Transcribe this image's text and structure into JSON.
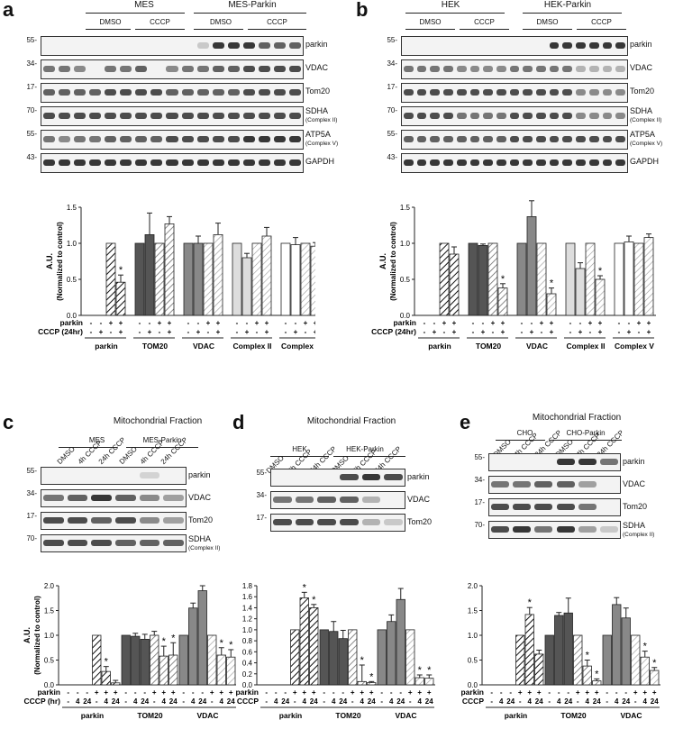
{
  "panels": {
    "a": {
      "label": "a",
      "groups": [
        "MES",
        "MES-Parkin"
      ],
      "treatments": [
        "DMSO",
        "CCCP",
        "DMSO",
        "CCCP"
      ],
      "rows": [
        {
          "mw": "55-",
          "label": "parkin",
          "sub": ""
        },
        {
          "mw": "34-",
          "label": "VDAC",
          "sub": ""
        },
        {
          "mw": "17-",
          "label": "Tom20",
          "sub": ""
        },
        {
          "mw": "70-",
          "label": "SDHA",
          "sub": "(Complex II)"
        },
        {
          "mw": "55-",
          "label": "ATP5A",
          "sub": "(Complex V)"
        },
        {
          "mw": "43-",
          "label": "GAPDH",
          "sub": ""
        }
      ]
    },
    "b": {
      "label": "b",
      "groups": [
        "HEK",
        "HEK-Parkin"
      ],
      "treatments": [
        "DMSO",
        "CCCP",
        "DMSO",
        "CCCP"
      ],
      "rows": [
        {
          "mw": "55-",
          "label": "parkin",
          "sub": ""
        },
        {
          "mw": "34-",
          "label": "VDAC",
          "sub": ""
        },
        {
          "mw": "17-",
          "label": "Tom20",
          "sub": ""
        },
        {
          "mw": "70-",
          "label": "SDHA",
          "sub": "(Complex II)"
        },
        {
          "mw": "55-",
          "label": "ATP5A",
          "sub": "(Complex V)"
        },
        {
          "mw": "43-",
          "label": "GAPDH",
          "sub": ""
        }
      ]
    },
    "c": {
      "label": "c",
      "title": "Mitochondrial Fraction",
      "groups": [
        "MES",
        "MES-Parkin"
      ],
      "lanes": [
        "DMSO",
        "4h CCCP",
        "24h CCCP",
        "DMSO",
        "4h CCCP",
        "24h CCCP"
      ],
      "rows": [
        {
          "mw": "55-",
          "label": "parkin",
          "sub": ""
        },
        {
          "mw": "34-",
          "label": "VDAC",
          "sub": ""
        },
        {
          "mw": "17-",
          "label": "Tom20",
          "sub": ""
        },
        {
          "mw": "70-",
          "label": "SDHA",
          "sub": "(Complex II)"
        }
      ]
    },
    "d": {
      "label": "d",
      "title": "Mitochondrial Fraction",
      "groups": [
        "HEK",
        "HEK-Parkin"
      ],
      "lanes": [
        "DMSO",
        "4h CCCP",
        "24h CCCP",
        "DMSO",
        "4h CCCP",
        "24h CCCP"
      ],
      "rows": [
        {
          "mw": "55-",
          "label": "parkin",
          "sub": ""
        },
        {
          "mw": "34-",
          "label": "VDAC",
          "sub": ""
        },
        {
          "mw": "17-",
          "label": "Tom20",
          "sub": ""
        }
      ]
    },
    "e": {
      "label": "e",
      "title": "Mitochondrial Fraction",
      "groups": [
        "CHO",
        "CHO-Parkin"
      ],
      "lanes": [
        "DMSO",
        "4h CCCP",
        "24h CCCP",
        "DMSO",
        "4h CCCP",
        "24h CCCP"
      ],
      "rows": [
        {
          "mw": "55-",
          "label": "parkin",
          "sub": ""
        },
        {
          "mw": "34-",
          "label": "VDAC",
          "sub": ""
        },
        {
          "mw": "17-",
          "label": "Tom20",
          "sub": ""
        },
        {
          "mw": "70-",
          "label": "SDHA",
          "sub": "(Complex II)"
        }
      ]
    }
  },
  "chart_data": [
    {
      "id": "a",
      "type": "bar",
      "ylabel": "A.U.\n(Normalized to control)",
      "ylim": [
        0,
        1.5
      ],
      "yticks": [
        "0.0",
        "0.5",
        "1.0",
        "1.5"
      ],
      "row_labels": [
        "parkin",
        "CCCP (24hr)"
      ],
      "row_values": [
        [
          "-",
          "-",
          "+",
          "+"
        ],
        [
          "-",
          "+",
          "-",
          "+"
        ]
      ],
      "categories": [
        "parkin",
        "TOM20",
        "VDAC",
        "Complex II",
        "Complex V"
      ],
      "values": [
        [
          0,
          0,
          1.0,
          0.46
        ],
        [
          1.0,
          1.12,
          1.0,
          1.27
        ],
        [
          1.0,
          1.0,
          1.0,
          1.12
        ],
        [
          1.0,
          0.8,
          1.0,
          1.1
        ],
        [
          1.0,
          0.98,
          1.0,
          0.96
        ]
      ],
      "errors": [
        [
          0,
          0,
          0,
          0.1
        ],
        [
          0,
          0.3,
          0,
          0.1
        ],
        [
          0,
          0.1,
          0,
          0.16
        ],
        [
          0,
          0.06,
          0,
          0.12
        ],
        [
          0,
          0.1,
          0,
          0.05
        ]
      ],
      "stars": [
        [
          0,
          0,
          0,
          1
        ],
        [
          0,
          0,
          0,
          0
        ],
        [
          0,
          0,
          0,
          0
        ],
        [
          0,
          0,
          0,
          0
        ],
        [
          0,
          0,
          0,
          0
        ]
      ]
    },
    {
      "id": "b",
      "type": "bar",
      "ylabel": "A.U.\n(Normalized to control)",
      "ylim": [
        0,
        1.5
      ],
      "yticks": [
        "0.0",
        "0.5",
        "1.0",
        "1.5"
      ],
      "row_labels": [
        "parkin",
        "CCCP (24hr)"
      ],
      "row_values": [
        [
          "-",
          "-",
          "+",
          "+"
        ],
        [
          "-",
          "+",
          "-",
          "+"
        ]
      ],
      "categories": [
        "parkin",
        "TOM20",
        "VDAC",
        "Complex II",
        "Complex V"
      ],
      "values": [
        [
          0,
          0,
          1.0,
          0.85
        ],
        [
          1.0,
          0.97,
          1.0,
          0.38
        ],
        [
          1.0,
          1.37,
          1.0,
          0.3
        ],
        [
          1.0,
          0.65,
          1.0,
          0.5
        ],
        [
          1.0,
          1.02,
          1.0,
          1.08
        ]
      ],
      "errors": [
        [
          0,
          0,
          0,
          0.1
        ],
        [
          0,
          0.02,
          0,
          0.06
        ],
        [
          0,
          0.22,
          0,
          0.08
        ],
        [
          0,
          0.08,
          0,
          0.05
        ],
        [
          0,
          0.08,
          0,
          0.05
        ]
      ],
      "stars": [
        [
          0,
          0,
          0,
          0
        ],
        [
          0,
          0,
          0,
          1
        ],
        [
          0,
          0,
          0,
          1
        ],
        [
          0,
          0,
          0,
          1
        ],
        [
          0,
          0,
          0,
          0
        ]
      ]
    },
    {
      "id": "c",
      "type": "bar",
      "ylabel": "A.U.\n(Normalized to control)",
      "ylim": [
        0,
        2.0
      ],
      "yticks": [
        "0.0",
        "0.5",
        "1.0",
        "1.5",
        "2.0"
      ],
      "row_labels": [
        "parkin",
        "CCCP (hr)"
      ],
      "row_values": [
        [
          "-",
          "-",
          "-",
          "+",
          "+",
          "+"
        ],
        [
          "-",
          "4",
          "24",
          "-",
          "4",
          "24"
        ]
      ],
      "categories": [
        "parkin",
        "TOM20",
        "VDAC"
      ],
      "values": [
        [
          0,
          0,
          0,
          1.0,
          0.27,
          0.04
        ],
        [
          1.0,
          0.98,
          0.92,
          1.0,
          0.58,
          0.6
        ],
        [
          1.0,
          1.55,
          1.9,
          1.0,
          0.6,
          0.56
        ]
      ],
      "errors": [
        [
          0,
          0,
          0,
          0,
          0.1,
          0.05
        ],
        [
          0,
          0.06,
          0.1,
          0.08,
          0.2,
          0.25
        ],
        [
          0,
          0.1,
          0.1,
          0,
          0.15,
          0.15
        ]
      ],
      "stars": [
        [
          0,
          0,
          0,
          0,
          1,
          0
        ],
        [
          0,
          0,
          0,
          0,
          1,
          1
        ],
        [
          0,
          0,
          0,
          0,
          1,
          1
        ]
      ]
    },
    {
      "id": "d",
      "type": "bar",
      "ylabel": "",
      "ylim": [
        0,
        1.8
      ],
      "yticks": [
        "0.0",
        "0.2",
        "0.4",
        "0.6",
        "0.8",
        "1.0",
        "1.2",
        "1.4",
        "1.6",
        "1.8"
      ],
      "row_labels": [
        "parkin",
        "CCCP"
      ],
      "row_values": [
        [
          "-",
          "-",
          "-",
          "+",
          "+",
          "+"
        ],
        [
          "-",
          "4",
          "24",
          "-",
          "4",
          "24"
        ]
      ],
      "categories": [
        "parkin",
        "TOM20",
        "VDAC"
      ],
      "values": [
        [
          0,
          0,
          0,
          1.0,
          1.58,
          1.4
        ],
        [
          1.0,
          0.97,
          0.84,
          1.0,
          0.06,
          0.04
        ],
        [
          1.0,
          1.15,
          1.55,
          1.0,
          0.13,
          0.12
        ]
      ],
      "errors": [
        [
          0,
          0,
          0,
          0,
          0.1,
          0.06
        ],
        [
          0,
          0.18,
          0.15,
          0,
          0.3,
          0.02
        ],
        [
          0,
          0.12,
          0.2,
          0,
          0.05,
          0.06
        ]
      ],
      "stars": [
        [
          0,
          0,
          0,
          0,
          1,
          1
        ],
        [
          0,
          0,
          0,
          0,
          1,
          1
        ],
        [
          0,
          0,
          0,
          0,
          1,
          1
        ]
      ]
    },
    {
      "id": "e",
      "type": "bar",
      "ylabel": "",
      "ylim": [
        0,
        2.0
      ],
      "yticks": [
        "0.0",
        "0.5",
        "1.0",
        "1.5",
        "2.0"
      ],
      "row_labels": [
        "parkin",
        "CCCP"
      ],
      "row_values": [
        [
          "-",
          "-",
          "-",
          "+",
          "+",
          "+"
        ],
        [
          "-",
          "4",
          "24",
          "-",
          "4",
          "24"
        ]
      ],
      "categories": [
        "parkin",
        "TOM20",
        "VDAC"
      ],
      "values": [
        [
          0,
          0,
          0,
          1.0,
          1.42,
          0.62
        ],
        [
          1.0,
          1.4,
          1.45,
          1.0,
          0.38,
          0.08
        ],
        [
          1.0,
          1.62,
          1.35,
          1.0,
          0.56,
          0.29
        ]
      ],
      "errors": [
        [
          0,
          0,
          0,
          0,
          0.14,
          0.08
        ],
        [
          0,
          0.06,
          0.3,
          0,
          0.12,
          0.04
        ],
        [
          0,
          0.14,
          0.2,
          0,
          0.12,
          0.06
        ]
      ],
      "stars": [
        [
          0,
          0,
          0,
          0,
          1,
          0
        ],
        [
          0,
          0,
          0,
          0,
          1,
          1
        ],
        [
          0,
          0,
          0,
          0,
          1,
          1
        ]
      ]
    }
  ]
}
